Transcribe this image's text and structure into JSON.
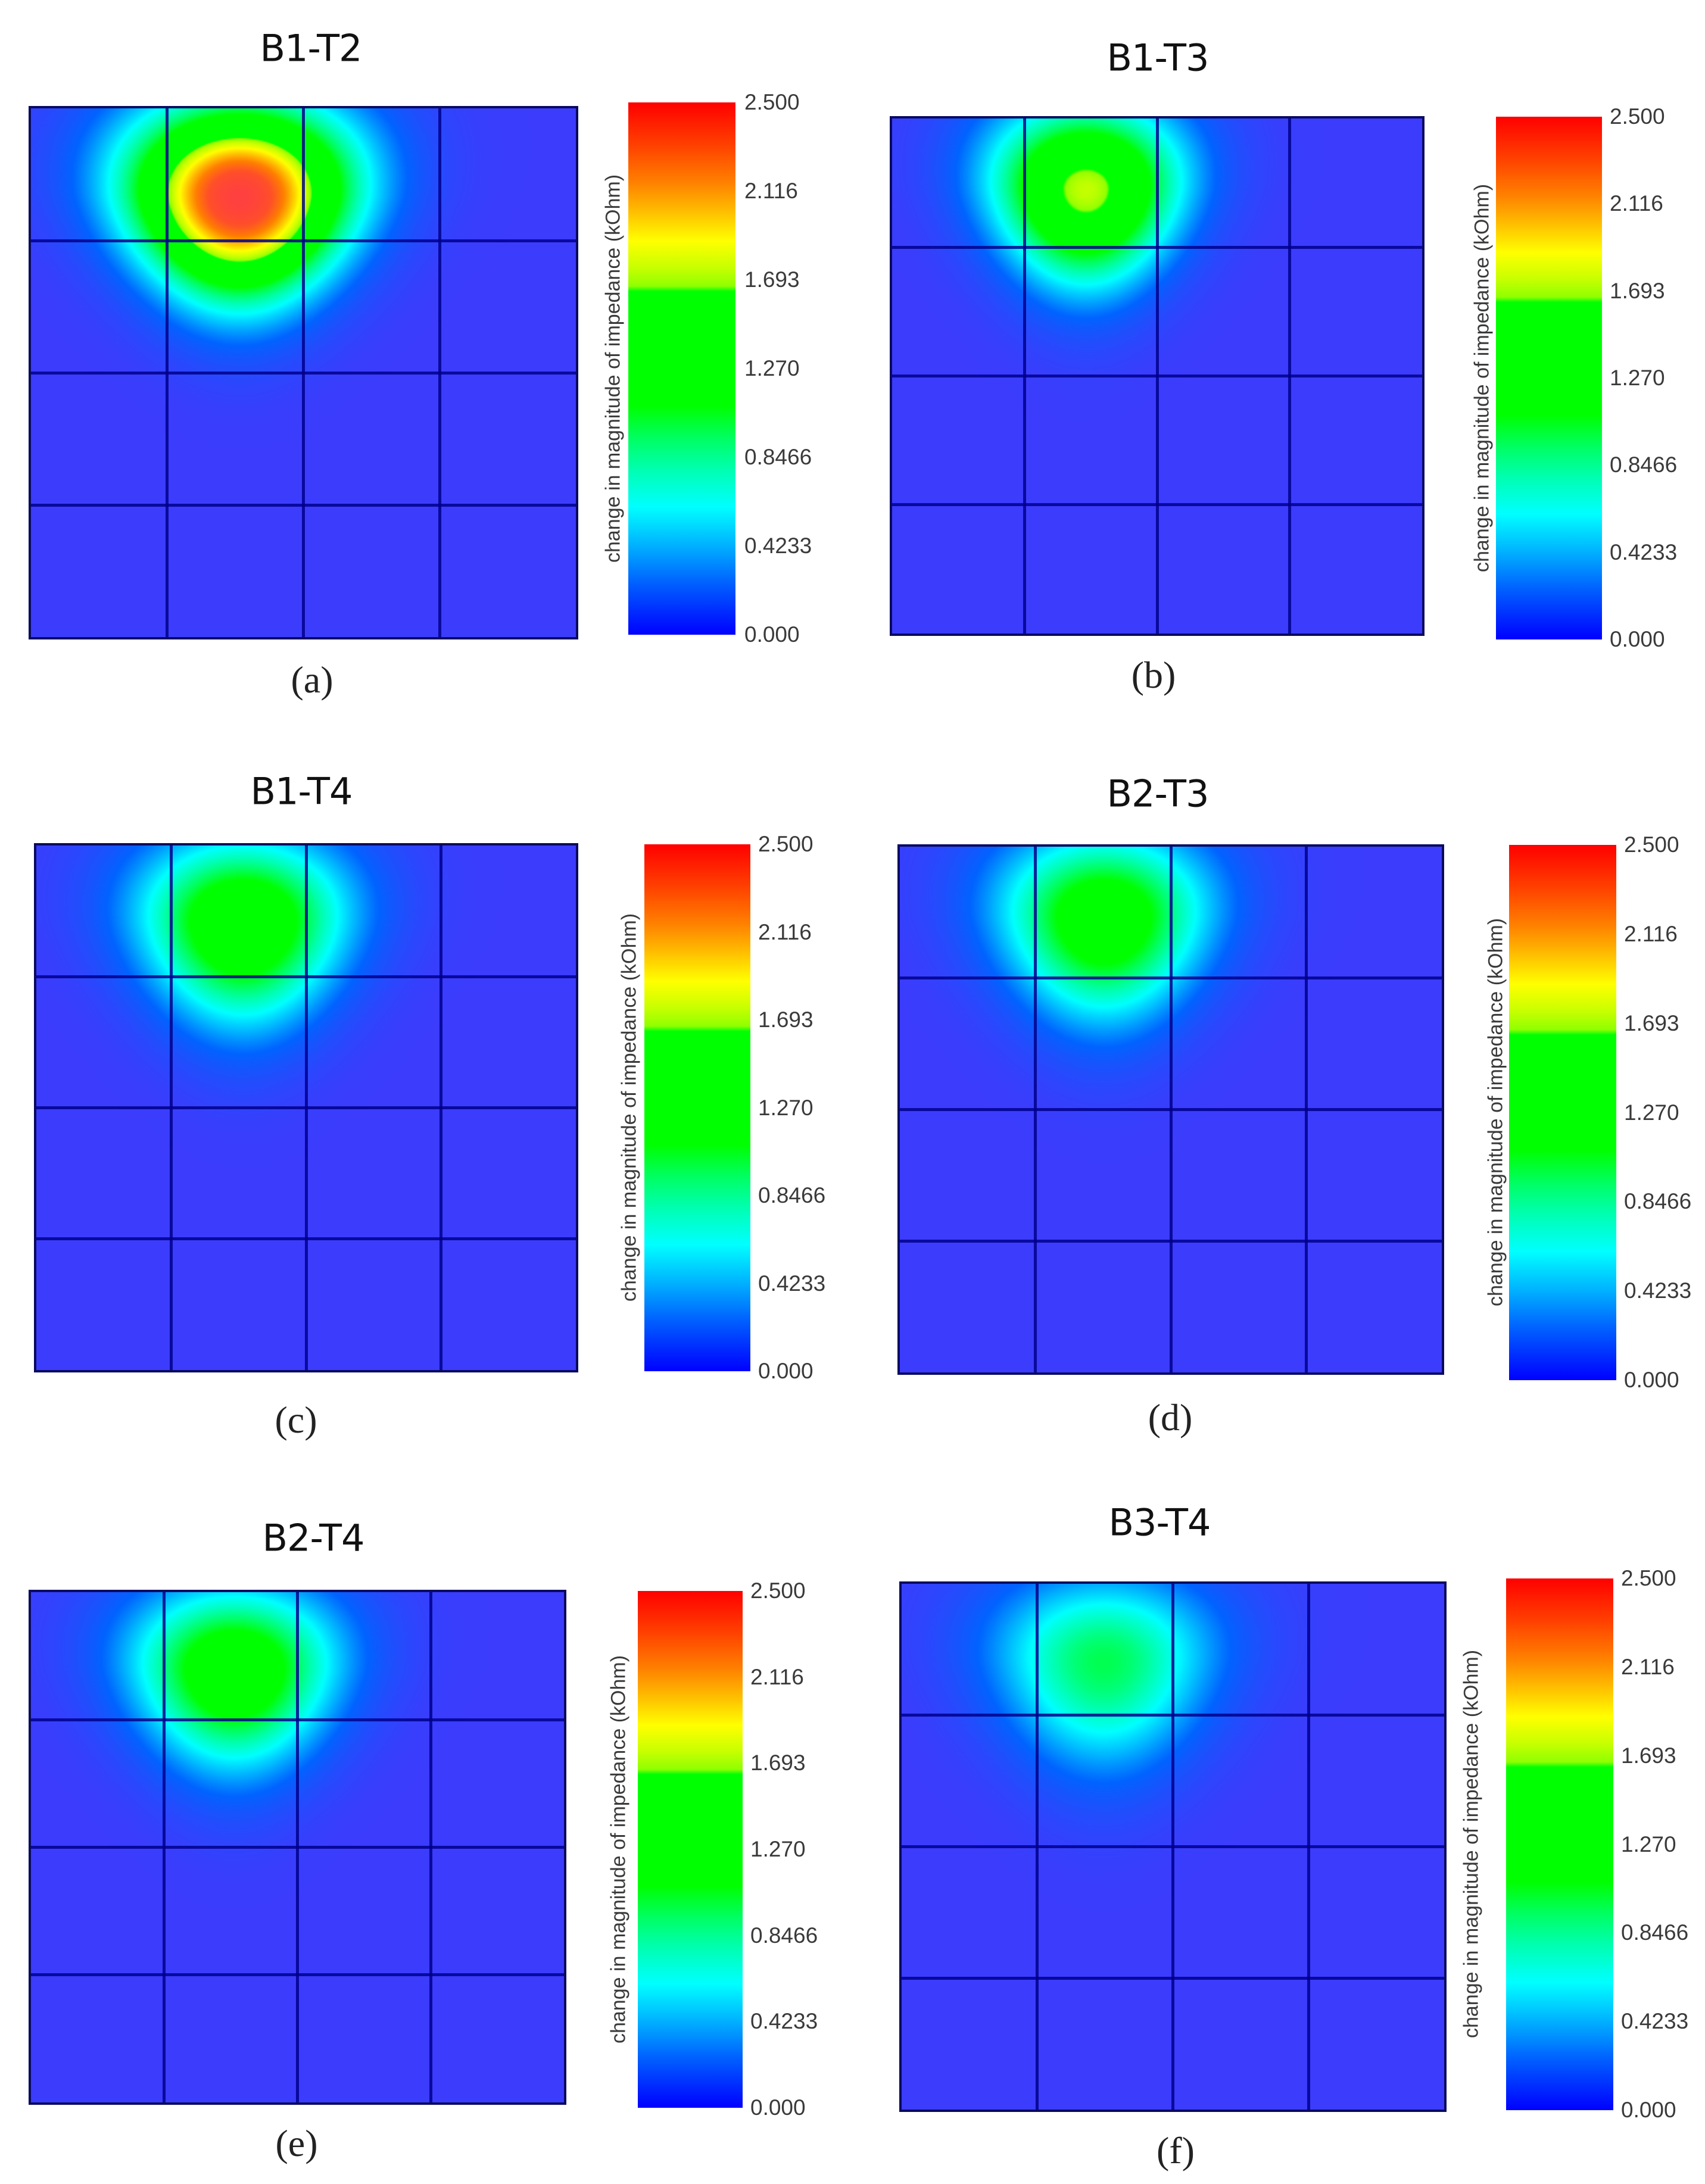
{
  "figure": {
    "panels": [
      {
        "id": "a",
        "title": "B1-T2",
        "caption": "(a)",
        "colorbar_label": "change in magnitude of impedance (kOhm)",
        "ticks": [
          "2.500",
          "2.116",
          "1.693",
          "1.270",
          "0.8466",
          "0.4233",
          "0.000"
        ]
      },
      {
        "id": "b",
        "title": "B1-T3",
        "caption": "(b)",
        "colorbar_label": "change in magnitude of impedance (kOhm)",
        "ticks": [
          "2.500",
          "2.116",
          "1.693",
          "1.270",
          "0.8466",
          "0.4233",
          "0.000"
        ]
      },
      {
        "id": "c",
        "title": "B1-T4",
        "caption": "(c)",
        "colorbar_label": "change in magnitude of impedance (kOhm)",
        "ticks": [
          "2.500",
          "2.116",
          "1.693",
          "1.270",
          "0.8466",
          "0.4233",
          "0.000"
        ]
      },
      {
        "id": "d",
        "title": "B2-T3",
        "caption": "(d)",
        "colorbar_label": "change in magnitude of impedance (kOhm)",
        "ticks": [
          "2.500",
          "2.116",
          "1.693",
          "1.270",
          "0.8466",
          "0.4233",
          "0.000"
        ]
      },
      {
        "id": "e",
        "title": "B2-T4",
        "caption": "(e)",
        "colorbar_label": "change in magnitude of impedance (kOhm)",
        "ticks": [
          "2.500",
          "2.116",
          "1.693",
          "1.270",
          "0.8466",
          "0.4233",
          "0.000"
        ]
      },
      {
        "id": "f",
        "title": "B3-T4",
        "caption": "(f)",
        "colorbar_label": "change in magnitude of impedance (kOhm)",
        "ticks": [
          "2.500",
          "2.116",
          "1.693",
          "1.270",
          "0.8466",
          "0.4233",
          "0.000"
        ]
      }
    ]
  },
  "chart_data": [
    {
      "type": "heatmap",
      "title": "B1-T2",
      "panel": "(a)",
      "grid": {
        "rows": 4,
        "cols": 4
      },
      "colorbar": {
        "label": "change in magnitude of impedance (kOhm)",
        "range": [
          0.0,
          2.5
        ],
        "ticks": [
          2.5,
          2.116,
          1.693,
          1.27,
          0.8466,
          0.4233,
          0.0
        ]
      },
      "hotspot": {
        "peak_value": 2.5,
        "center": [
          0.382,
          0.167
        ],
        "spread_x": 0.2,
        "spread_y_up": 0.17,
        "spread_y_down": 0.185
      },
      "background_value": 0.0
    },
    {
      "type": "heatmap",
      "title": "B1-T3",
      "panel": "(b)",
      "grid": {
        "rows": 4,
        "cols": 4
      },
      "colorbar": {
        "label": "change in magnitude of impedance (kOhm)",
        "range": [
          0.0,
          2.5
        ],
        "ticks": [
          2.5,
          2.116,
          1.693,
          1.27,
          0.8466,
          0.4233,
          0.0
        ]
      },
      "hotspot": {
        "peak_value": 1.72,
        "center": [
          0.365,
          0.137
        ],
        "spread_x": 0.175,
        "spread_y_up": 0.16,
        "spread_y_down": 0.18
      },
      "background_value": 0.0
    },
    {
      "type": "heatmap",
      "title": "B1-T4",
      "panel": "(c)",
      "grid": {
        "rows": 4,
        "cols": 4
      },
      "colorbar": {
        "label": "change in magnitude of impedance (kOhm)",
        "range": [
          0.0,
          2.5
        ],
        "ticks": [
          2.5,
          2.116,
          1.693,
          1.27,
          0.8466,
          0.4233,
          0.0
        ]
      },
      "hotspot": {
        "peak_value": 1.4,
        "center": [
          0.382,
          0.147
        ],
        "spread_x": 0.19,
        "spread_y_up": 0.16,
        "spread_y_down": 0.19
      },
      "background_value": 0.0
    },
    {
      "type": "heatmap",
      "title": "B2-T3",
      "panel": "(d)",
      "grid": {
        "rows": 4,
        "cols": 4
      },
      "colorbar": {
        "label": "change in magnitude of impedance (kOhm)",
        "range": [
          0.0,
          2.5
        ],
        "ticks": [
          2.5,
          2.116,
          1.693,
          1.27,
          0.8466,
          0.4233,
          0.0
        ]
      },
      "hotspot": {
        "peak_value": 1.32,
        "center": [
          0.376,
          0.135
        ],
        "spread_x": 0.19,
        "spread_y_up": 0.16,
        "spread_y_down": 0.19
      },
      "background_value": 0.0
    },
    {
      "type": "heatmap",
      "title": "B2-T4",
      "panel": "(e)",
      "grid": {
        "rows": 4,
        "cols": 4
      },
      "colorbar": {
        "label": "change in magnitude of impedance (kOhm)",
        "range": [
          0.0,
          2.5
        ],
        "ticks": [
          2.5,
          2.116,
          1.693,
          1.27,
          0.8466,
          0.4233,
          0.0
        ]
      },
      "hotspot": {
        "peak_value": 1.36,
        "center": [
          0.381,
          0.152
        ],
        "spread_x": 0.19,
        "spread_y_up": 0.16,
        "spread_y_down": 0.19
      },
      "background_value": 0.0
    },
    {
      "type": "heatmap",
      "title": "B3-T4",
      "panel": "(f)",
      "grid": {
        "rows": 4,
        "cols": 4
      },
      "colorbar": {
        "label": "change in magnitude of impedance (kOhm)",
        "range": [
          0.0,
          2.5
        ],
        "ticks": [
          2.5,
          2.116,
          1.693,
          1.27,
          0.8466,
          0.4233,
          0.0
        ]
      },
      "hotspot": {
        "peak_value": 0.95,
        "center": [
          0.372,
          0.146
        ],
        "spread_x": 0.2,
        "spread_y_up": 0.16,
        "spread_y_down": 0.2
      },
      "background_value": 0.0
    }
  ]
}
